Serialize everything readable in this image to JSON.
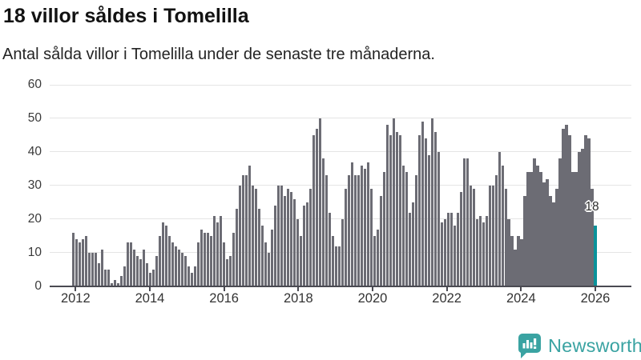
{
  "header": {
    "title": "18 villor såldes i Tomelilla",
    "subtitle": "Antal sålda villor i Tomelilla under de senaste tre månaderna."
  },
  "chart_data": {
    "type": "bar",
    "title": "18 villor såldes i Tomelilla",
    "subtitle": "Antal sålda villor i Tomelilla under de senaste tre månaderna.",
    "ylabel": "",
    "xlabel": "",
    "ylim": [
      0,
      60
    ],
    "y_ticks": [
      0,
      10,
      20,
      30,
      40,
      50,
      60
    ],
    "x_tick_labels": [
      "2012",
      "2014",
      "2016",
      "2018",
      "2020",
      "2022",
      "2024",
      "2026"
    ],
    "grid": true,
    "bar_color": "#6c6c74",
    "highlight_color": "#0a929a",
    "values": [
      16,
      14,
      13,
      14,
      15,
      10,
      10,
      10,
      7,
      11,
      5,
      5,
      1,
      2,
      1,
      3,
      6,
      13,
      13,
      11,
      9,
      8,
      11,
      7,
      4,
      5,
      9,
      15,
      19,
      18,
      15,
      13,
      12,
      11,
      10,
      9,
      6,
      4,
      6,
      13,
      17,
      16,
      16,
      15,
      21,
      19,
      21,
      13,
      8,
      9,
      16,
      23,
      30,
      33,
      33,
      36,
      30,
      29,
      23,
      18,
      13,
      10,
      17,
      24,
      30,
      30,
      27,
      29,
      28,
      26,
      20,
      15,
      24,
      25,
      29,
      45,
      47,
      50,
      38,
      33,
      22,
      15,
      12,
      12,
      20,
      29,
      33,
      37,
      33,
      33,
      36,
      35,
      37,
      29,
      15,
      17,
      27,
      34,
      48,
      45,
      50,
      46,
      45,
      36,
      34,
      22,
      25,
      33,
      45,
      49,
      44,
      39,
      50,
      46,
      40,
      19,
      20,
      22,
      22,
      18,
      22,
      28,
      38,
      38,
      30,
      29,
      20,
      21,
      19,
      21,
      30,
      30,
      33,
      40,
      36,
      29,
      20,
      15,
      11,
      15,
      14,
      27,
      34,
      34,
      38,
      36,
      34,
      31,
      32,
      27,
      25,
      29,
      38,
      47,
      48,
      45,
      34,
      34,
      40,
      41,
      45,
      44,
      29,
      18
    ],
    "highlight": {
      "index": 163,
      "value": 18,
      "label": "18"
    }
  },
  "branding": {
    "name": "Newsworthy",
    "color": "#3aa3a2",
    "icon": "newsworthy-bar-chart-bubble-icon"
  }
}
